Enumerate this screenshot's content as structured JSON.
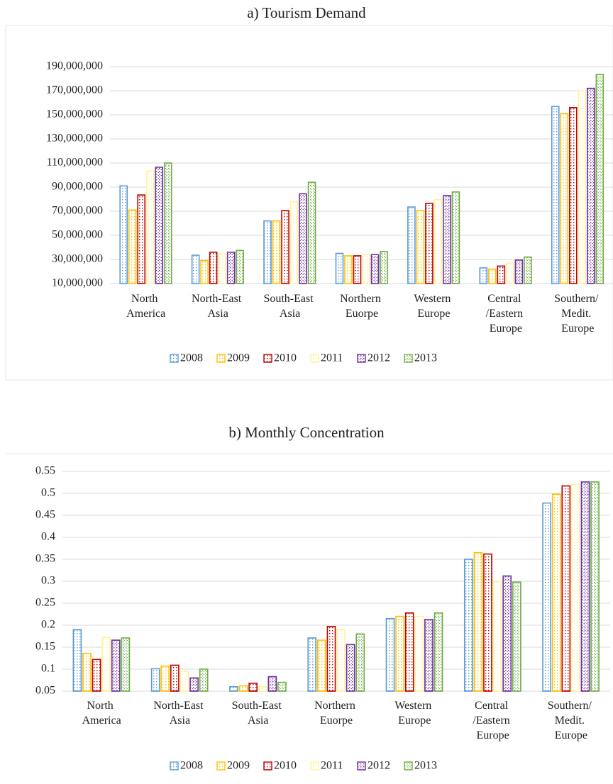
{
  "chart_data": [
    {
      "type": "bar",
      "title": "a) Tourism Demand",
      "categories": [
        "North America",
        "North-East Asia",
        "South-East Asia",
        "Northern Euorpe",
        "Western Europe",
        "Central /Eastern Europe",
        "Southern/ Medit. Europe"
      ],
      "series": [
        {
          "name": "2008",
          "color": "#5b9bd5",
          "values": [
            91000000,
            33500000,
            62000000,
            35000000,
            73500000,
            23000000,
            157000000
          ]
        },
        {
          "name": "2009",
          "color": "#ffc000",
          "values": [
            71000000,
            29000000,
            62000000,
            33000000,
            70500000,
            22000000,
            151000000
          ]
        },
        {
          "name": "2010",
          "color": "#c00000",
          "values": [
            83500000,
            36000000,
            70500000,
            33000000,
            76500000,
            24500000,
            156000000
          ]
        },
        {
          "name": "2011",
          "color": "#fff2a0",
          "values": [
            103500000,
            34500000,
            78000000,
            34000000,
            79500000,
            27000000,
            170000000
          ]
        },
        {
          "name": "2012",
          "color": "#7030a0",
          "values": [
            106500000,
            36000000,
            84500000,
            34000000,
            83000000,
            29500000,
            172000000
          ]
        },
        {
          "name": "2013",
          "color": "#70ad47",
          "values": [
            110000000,
            37500000,
            94000000,
            36500000,
            86000000,
            32000000,
            183500000
          ]
        }
      ],
      "ylim": [
        10000000,
        190000000
      ],
      "yticks": [
        {
          "value": 10000000,
          "label": "10,000,000"
        },
        {
          "value": 30000000,
          "label": "30,000,000"
        },
        {
          "value": 50000000,
          "label": "50,000,000"
        },
        {
          "value": 70000000,
          "label": "70,000,000"
        },
        {
          "value": 90000000,
          "label": "90,000,000"
        },
        {
          "value": 110000000,
          "label": "110,000,000"
        },
        {
          "value": 130000000,
          "label": "130,000,000"
        },
        {
          "value": 150000000,
          "label": "150,000,000"
        },
        {
          "value": 170000000,
          "label": "170,000,000"
        },
        {
          "value": 190000000,
          "label": "190,000,000"
        }
      ],
      "grid": true,
      "legend": "bottom"
    },
    {
      "type": "bar",
      "title": "b) Monthly Concentration",
      "categories": [
        "North America",
        "North-East Asia",
        "South-East Asia",
        "Northern Euorpe",
        "Western Europe",
        "Central /Eastern Europe",
        "Southern/ Medit. Europe"
      ],
      "series": [
        {
          "name": "2008",
          "color": "#5b9bd5",
          "values": [
            0.19,
            0.101,
            0.06,
            0.171,
            0.215,
            0.35,
            0.478
          ]
        },
        {
          "name": "2009",
          "color": "#ffc000",
          "values": [
            0.136,
            0.107,
            0.062,
            0.166,
            0.22,
            0.365,
            0.498
          ]
        },
        {
          "name": "2010",
          "color": "#c00000",
          "values": [
            0.122,
            0.109,
            0.068,
            0.197,
            0.228,
            0.362,
            0.517
          ]
        },
        {
          "name": "2011",
          "color": "#fff2a0",
          "values": [
            0.172,
            0.095,
            0.06,
            0.19,
            0.22,
            0.3,
            0.52
          ]
        },
        {
          "name": "2012",
          "color": "#7030a0",
          "values": [
            0.166,
            0.08,
            0.083,
            0.156,
            0.213,
            0.312,
            0.526
          ]
        },
        {
          "name": "2013",
          "color": "#70ad47",
          "values": [
            0.171,
            0.1,
            0.07,
            0.18,
            0.228,
            0.298,
            0.526
          ]
        }
      ],
      "ylim": [
        0.05,
        0.55
      ],
      "yticks": [
        0.05,
        0.1,
        0.15,
        0.2,
        0.25,
        0.3,
        0.35,
        0.4,
        0.45,
        0.5,
        0.55
      ],
      "grid": true,
      "legend": "bottom"
    }
  ]
}
